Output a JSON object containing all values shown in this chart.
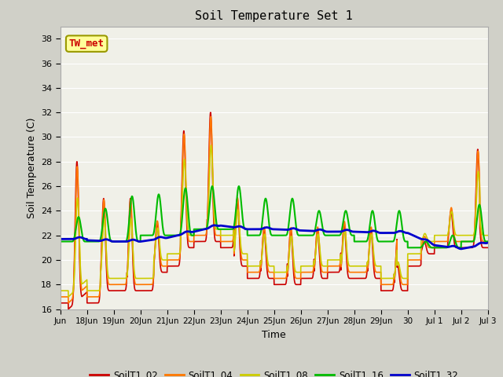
{
  "title": "Soil Temperature Set 1",
  "xlabel": "Time",
  "ylabel": "Soil Temperature (C)",
  "ylim": [
    16,
    39
  ],
  "yticks": [
    16,
    18,
    20,
    22,
    24,
    26,
    28,
    30,
    32,
    34,
    36,
    38
  ],
  "annotation": "TW_met",
  "series_colors": {
    "SoilT1_02": "#cc0000",
    "SoilT1_04": "#ff7700",
    "SoilT1_08": "#cccc00",
    "SoilT1_16": "#00bb00",
    "SoilT1_32": "#0000cc"
  },
  "xtick_labels": [
    "Jun",
    "18Jun",
    "19Jun",
    "20Jun",
    "21Jun",
    "22Jun",
    "23Jun",
    "24Jun",
    "25Jun",
    "26Jun",
    "27Jun",
    "28Jun",
    "29Jun",
    "30",
    "Jul 1",
    "Jul 2",
    "Jul 3"
  ],
  "background_color": "#f0f0e8",
  "fig_bg": "#d0d0c8",
  "grid_color": "#ffffff"
}
